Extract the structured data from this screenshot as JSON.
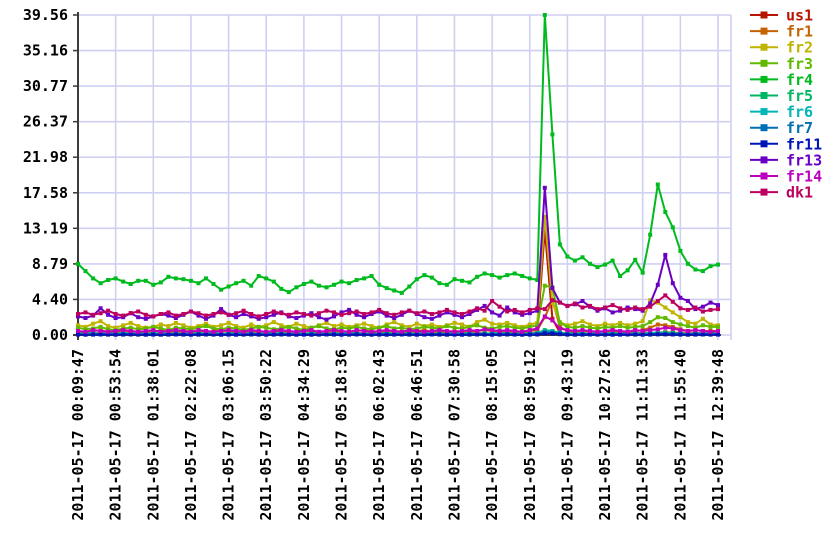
{
  "chart_data": {
    "type": "line",
    "title": "",
    "xlabel": "",
    "ylabel": "",
    "grid": true,
    "legend_position": "right",
    "y_max": 39.56,
    "y_tick_labels": [
      "39.56",
      "35.16",
      "30.77",
      "26.37",
      "21.98",
      "17.58",
      "13.19",
      "8.79",
      "4.40",
      "0.00"
    ],
    "x_tick_every_n_points": 5,
    "categories": [
      "2011-05-17 00:09:47",
      "2011-05-17 00:53:54",
      "2011-05-17 01:38:01",
      "2011-05-17 02:22:08",
      "2011-05-17 03:06:15",
      "2011-05-17 03:50:22",
      "2011-05-17 04:34:29",
      "2011-05-17 05:18:36",
      "2011-05-17 06:02:43",
      "2011-05-17 06:46:51",
      "2011-05-17 07:30:58",
      "2011-05-17 08:15:05",
      "2011-05-17 08:59:12",
      "2011-05-17 09:43:19",
      "2011-05-17 10:27:26",
      "2011-05-17 11:11:33",
      "2011-05-17 11:55:40",
      "2011-05-17 12:39:48"
    ],
    "colors": {
      "grid": "#cfcff2",
      "axis": "#3c3c3c",
      "text": "#000000",
      "background": "#ffffff"
    },
    "series": [
      {
        "name": "us1",
        "color": "#b81400",
        "values": [
          0.2,
          0.15,
          0.2,
          0.25,
          0.2,
          0.15,
          0.2,
          0.25,
          0.2,
          0.15,
          0.2,
          0.15,
          0.2,
          0.25,
          0.2,
          0.15,
          0.2,
          0.25,
          0.2,
          0.15,
          0.2,
          0.15,
          0.2,
          0.25,
          0.2,
          0.15,
          0.2,
          0.25,
          0.2,
          0.15,
          0.2,
          0.15,
          0.2,
          0.25,
          0.2,
          0.15,
          0.2,
          0.25,
          0.2,
          0.15,
          0.2,
          0.15,
          0.2,
          0.25,
          0.2,
          0.15,
          0.2,
          0.25,
          0.2,
          0.15,
          0.2,
          0.15,
          0.2,
          0.25,
          0.2,
          0.15,
          0.2,
          0.25,
          0.2,
          0.15,
          0.2,
          0.3,
          13.0,
          2.0,
          0.3,
          0.2,
          0.25,
          0.2,
          0.15,
          0.2,
          0.2,
          0.25,
          0.2,
          0.15,
          0.2,
          0.25,
          0.2,
          0.3,
          0.35,
          0.3,
          0.25,
          0.2,
          0.25,
          0.2,
          0.25,
          0.2
        ]
      },
      {
        "name": "fr1",
        "color": "#c66300",
        "values": [
          0.4,
          0.3,
          0.5,
          0.6,
          0.4,
          0.3,
          0.4,
          0.5,
          0.4,
          0.3,
          0.4,
          0.6,
          0.5,
          0.3,
          0.4,
          0.5,
          0.4,
          0.3,
          0.5,
          0.6,
          0.4,
          0.3,
          0.4,
          0.5,
          0.4,
          0.3,
          0.5,
          0.4,
          0.3,
          0.4,
          0.6,
          0.4,
          0.3,
          0.5,
          0.4,
          0.3,
          0.4,
          0.5,
          0.6,
          0.4,
          0.3,
          0.4,
          0.5,
          0.4,
          0.3,
          0.5,
          0.6,
          0.4,
          0.3,
          0.4,
          0.5,
          0.4,
          0.3,
          0.5,
          0.6,
          0.5,
          0.4,
          0.5,
          0.4,
          0.3,
          0.5,
          0.6,
          2.2,
          4.3,
          1.0,
          0.5,
          0.4,
          0.5,
          0.4,
          0.3,
          0.4,
          0.5,
          0.4,
          0.3,
          0.5,
          0.6,
          0.9,
          1.3,
          1.2,
          1.0,
          0.7,
          0.5,
          0.6,
          0.5,
          0.5,
          0.5
        ]
      },
      {
        "name": "fr2",
        "color": "#c0b400",
        "values": [
          1.2,
          1.0,
          1.4,
          1.7,
          1.1,
          0.9,
          1.2,
          1.5,
          1.1,
          0.9,
          1.0,
          1.3,
          1.1,
          1.5,
          1.2,
          0.9,
          1.1,
          1.4,
          1.0,
          1.2,
          1.5,
          1.1,
          0.9,
          1.3,
          1.0,
          1.2,
          1.6,
          1.2,
          1.0,
          1.4,
          1.1,
          0.9,
          1.2,
          1.5,
          1.1,
          1.3,
          1.0,
          1.2,
          1.4,
          1.1,
          0.9,
          1.3,
          1.6,
          1.2,
          1.0,
          1.4,
          1.1,
          1.3,
          1.0,
          1.2,
          1.5,
          1.3,
          1.0,
          1.6,
          1.9,
          1.4,
          1.3,
          1.5,
          1.2,
          1.0,
          1.3,
          1.5,
          14.6,
          4.0,
          1.6,
          1.2,
          1.4,
          1.7,
          1.3,
          1.1,
          1.4,
          1.2,
          1.5,
          1.2,
          1.4,
          1.7,
          4.3,
          4.0,
          3.4,
          2.8,
          2.2,
          1.6,
          1.4,
          2.0,
          1.3,
          1.2
        ]
      },
      {
        "name": "fr3",
        "color": "#62ba00",
        "values": [
          0.9,
          0.7,
          0.8,
          1.0,
          0.7,
          0.6,
          0.8,
          0.9,
          0.7,
          0.8,
          1.0,
          0.8,
          0.6,
          0.9,
          0.8,
          0.7,
          0.9,
          1.1,
          0.8,
          0.7,
          0.9,
          0.8,
          0.6,
          0.8,
          1.0,
          0.9,
          0.7,
          0.8,
          1.0,
          0.8,
          0.6,
          0.9,
          1.1,
          0.8,
          0.7,
          0.9,
          0.8,
          1.0,
          0.8,
          0.7,
          0.9,
          1.1,
          0.8,
          0.9,
          0.7,
          0.8,
          1.0,
          0.9,
          0.8,
          1.1,
          0.9,
          0.8,
          1.0,
          1.2,
          0.9,
          0.8,
          1.0,
          1.1,
          0.9,
          0.8,
          1.0,
          1.2,
          6.1,
          5.9,
          1.5,
          1.0,
          0.9,
          1.1,
          0.9,
          0.8,
          1.0,
          0.9,
          1.1,
          0.9,
          1.0,
          1.1,
          1.6,
          2.2,
          2.1,
          1.6,
          1.3,
          1.1,
          0.9,
          1.2,
          1.0,
          1.0
        ]
      },
      {
        "name": "fr4",
        "color": "#00bb1e",
        "values": [
          8.79,
          7.9,
          7.0,
          6.4,
          6.8,
          7.0,
          6.6,
          6.3,
          6.7,
          6.7,
          6.2,
          6.5,
          7.2,
          7.0,
          6.9,
          6.7,
          6.4,
          7.0,
          6.3,
          5.6,
          6.0,
          6.4,
          6.7,
          6.1,
          7.3,
          7.0,
          6.6,
          5.7,
          5.3,
          5.9,
          6.3,
          6.6,
          6.1,
          5.9,
          6.2,
          6.6,
          6.4,
          6.8,
          7.0,
          7.3,
          6.2,
          5.8,
          5.5,
          5.2,
          6.0,
          6.9,
          7.4,
          7.1,
          6.4,
          6.2,
          6.9,
          6.7,
          6.5,
          7.2,
          7.6,
          7.4,
          7.1,
          7.4,
          7.6,
          7.3,
          7.0,
          6.8,
          39.56,
          24.8,
          11.2,
          9.7,
          9.2,
          9.6,
          8.8,
          8.4,
          8.7,
          9.2,
          7.3,
          8.0,
          9.3,
          7.7,
          12.4,
          18.6,
          15.2,
          13.3,
          10.4,
          8.8,
          8.1,
          7.9,
          8.5,
          8.7
        ]
      },
      {
        "name": "fr5",
        "color": "#00b763",
        "values": [
          0.2,
          0.25,
          0.2,
          0.15,
          0.2,
          0.2,
          0.25,
          0.2,
          0.15,
          0.2,
          0.2,
          0.25,
          0.2,
          0.15,
          0.2,
          0.2,
          0.25,
          0.2,
          0.15,
          0.2,
          0.2,
          0.25,
          0.2,
          0.15,
          0.2,
          0.2,
          0.25,
          0.2,
          0.15,
          0.2,
          0.2,
          0.25,
          0.2,
          0.15,
          0.2,
          0.2,
          0.25,
          0.2,
          0.15,
          0.2,
          0.2,
          0.25,
          0.2,
          0.15,
          0.2,
          0.2,
          0.25,
          0.2,
          0.15,
          0.2,
          0.2,
          0.25,
          0.2,
          0.15,
          0.2,
          0.2,
          0.25,
          0.2,
          0.15,
          0.2,
          0.2,
          0.25,
          0.6,
          0.5,
          0.3,
          0.2,
          0.25,
          0.2,
          0.15,
          0.2,
          0.2,
          0.25,
          0.2,
          0.15,
          0.2,
          0.2,
          0.25,
          0.3,
          0.3,
          0.25,
          0.2,
          0.15,
          0.2,
          0.25,
          0.2,
          0.2
        ]
      },
      {
        "name": "fr6",
        "color": "#00b6b6",
        "values": [
          0.15,
          0.1,
          0.15,
          0.2,
          0.15,
          0.1,
          0.15,
          0.2,
          0.15,
          0.1,
          0.15,
          0.1,
          0.15,
          0.2,
          0.15,
          0.1,
          0.15,
          0.2,
          0.15,
          0.1,
          0.15,
          0.1,
          0.15,
          0.2,
          0.15,
          0.1,
          0.15,
          0.2,
          0.15,
          0.1,
          0.15,
          0.1,
          0.15,
          0.2,
          0.15,
          0.1,
          0.15,
          0.2,
          0.15,
          0.1,
          0.15,
          0.1,
          0.15,
          0.2,
          0.15,
          0.1,
          0.15,
          0.2,
          0.15,
          0.1,
          0.15,
          0.1,
          0.15,
          0.2,
          0.15,
          0.1,
          0.15,
          0.2,
          0.15,
          0.1,
          0.15,
          0.2,
          0.45,
          0.4,
          0.25,
          0.15,
          0.1,
          0.15,
          0.2,
          0.15,
          0.15,
          0.1,
          0.15,
          0.2,
          0.15,
          0.1,
          0.15,
          0.2,
          0.2,
          0.15,
          0.15,
          0.1,
          0.15,
          0.2,
          0.15,
          0.15
        ]
      },
      {
        "name": "fr7",
        "color": "#0070b6",
        "values": [
          0.1,
          0.08,
          0.1,
          0.12,
          0.1,
          0.08,
          0.1,
          0.12,
          0.1,
          0.08,
          0.1,
          0.08,
          0.1,
          0.12,
          0.1,
          0.08,
          0.1,
          0.12,
          0.1,
          0.08,
          0.1,
          0.08,
          0.1,
          0.12,
          0.1,
          0.08,
          0.1,
          0.12,
          0.1,
          0.08,
          0.1,
          0.08,
          0.1,
          0.12,
          0.1,
          0.08,
          0.1,
          0.12,
          0.1,
          0.08,
          0.1,
          0.08,
          0.1,
          0.12,
          0.1,
          0.08,
          0.1,
          0.12,
          0.1,
          0.08,
          0.1,
          0.08,
          0.1,
          0.12,
          0.1,
          0.08,
          0.1,
          0.12,
          0.1,
          0.08,
          0.1,
          0.12,
          0.35,
          0.3,
          0.2,
          0.1,
          0.08,
          0.1,
          0.12,
          0.1,
          0.1,
          0.08,
          0.1,
          0.12,
          0.1,
          0.08,
          0.1,
          0.15,
          0.15,
          0.12,
          0.1,
          0.08,
          0.1,
          0.12,
          0.1,
          0.1
        ]
      },
      {
        "name": "fr11",
        "color": "#0015b8",
        "values": [
          0.05,
          0.04,
          0.05,
          0.06,
          0.05,
          0.04,
          0.05,
          0.06,
          0.05,
          0.04,
          0.05,
          0.04,
          0.05,
          0.06,
          0.05,
          0.04,
          0.05,
          0.06,
          0.05,
          0.04,
          0.05,
          0.04,
          0.05,
          0.06,
          0.05,
          0.04,
          0.05,
          0.06,
          0.05,
          0.04,
          0.05,
          0.04,
          0.05,
          0.06,
          0.05,
          0.04,
          0.05,
          0.06,
          0.05,
          0.04,
          0.05,
          0.04,
          0.05,
          0.06,
          0.05,
          0.04,
          0.05,
          0.06,
          0.05,
          0.04,
          0.05,
          0.04,
          0.05,
          0.06,
          0.05,
          0.04,
          0.05,
          0.06,
          0.05,
          0.04,
          0.05,
          0.06,
          0.2,
          0.18,
          0.1,
          0.05,
          0.04,
          0.05,
          0.06,
          0.05,
          0.05,
          0.04,
          0.05,
          0.06,
          0.05,
          0.04,
          0.05,
          0.08,
          0.08,
          0.06,
          0.05,
          0.04,
          0.05,
          0.06,
          0.05,
          0.05
        ]
      },
      {
        "name": "fr13",
        "color": "#6a00c4",
        "values": [
          2.3,
          2.1,
          2.4,
          3.3,
          2.5,
          2.1,
          2.2,
          2.7,
          2.2,
          2.0,
          2.3,
          2.6,
          2.4,
          2.1,
          2.5,
          2.9,
          2.4,
          2.0,
          2.4,
          3.2,
          2.5,
          2.2,
          2.6,
          2.3,
          2.0,
          2.2,
          2.5,
          2.8,
          2.3,
          2.1,
          2.4,
          2.7,
          2.2,
          1.9,
          2.3,
          2.8,
          3.1,
          2.5,
          2.2,
          2.6,
          2.9,
          2.4,
          2.1,
          2.5,
          3.0,
          2.6,
          2.2,
          2.0,
          2.4,
          2.8,
          2.5,
          2.2,
          2.6,
          3.1,
          3.6,
          2.8,
          2.4,
          3.4,
          2.8,
          2.5,
          2.7,
          3.0,
          18.2,
          5.8,
          4.0,
          3.6,
          3.8,
          4.2,
          3.5,
          3.0,
          3.3,
          2.8,
          3.0,
          3.4,
          3.2,
          3.0,
          3.9,
          6.2,
          9.9,
          6.4,
          4.6,
          4.2,
          3.2,
          3.5,
          4.0,
          3.7
        ]
      },
      {
        "name": "fr14",
        "color": "#bd00bd",
        "values": [
          0.5,
          0.4,
          0.6,
          0.5,
          0.4,
          0.5,
          0.6,
          0.5,
          0.4,
          0.5,
          0.6,
          0.4,
          0.5,
          0.6,
          0.5,
          0.4,
          0.6,
          0.5,
          0.4,
          0.5,
          0.6,
          0.5,
          0.4,
          0.6,
          0.5,
          0.4,
          0.5,
          0.6,
          0.5,
          0.4,
          0.5,
          0.6,
          0.4,
          0.5,
          0.6,
          0.5,
          0.4,
          0.6,
          0.5,
          0.4,
          0.5,
          0.6,
          0.5,
          0.4,
          0.6,
          0.5,
          0.4,
          0.5,
          0.6,
          0.5,
          0.4,
          0.5,
          0.6,
          0.5,
          0.7,
          0.6,
          0.5,
          0.6,
          0.5,
          0.4,
          0.6,
          0.8,
          2.3,
          1.8,
          0.8,
          0.6,
          0.5,
          0.6,
          0.5,
          0.4,
          0.5,
          0.6,
          0.5,
          0.4,
          0.6,
          0.5,
          0.6,
          0.7,
          0.9,
          0.8,
          0.6,
          0.5,
          0.6,
          0.5,
          0.4,
          0.5
        ]
      },
      {
        "name": "dk1",
        "color": "#bd005f",
        "values": [
          2.6,
          2.8,
          2.5,
          2.7,
          3.0,
          2.6,
          2.4,
          2.7,
          2.9,
          2.5,
          2.3,
          2.6,
          2.8,
          2.4,
          2.6,
          2.9,
          2.7,
          2.4,
          2.6,
          2.8,
          2.5,
          2.7,
          3.0,
          2.6,
          2.3,
          2.6,
          2.9,
          2.7,
          2.5,
          2.8,
          2.6,
          2.4,
          2.7,
          3.0,
          2.8,
          2.5,
          2.7,
          2.9,
          2.6,
          2.8,
          3.1,
          2.7,
          2.5,
          2.8,
          3.0,
          2.7,
          2.9,
          2.6,
          2.8,
          3.1,
          2.8,
          2.6,
          2.9,
          3.3,
          3.0,
          4.2,
          3.5,
          2.9,
          3.1,
          2.8,
          3.1,
          3.3,
          3.2,
          4.3,
          4.0,
          3.6,
          3.9,
          3.4,
          3.6,
          3.2,
          3.4,
          3.7,
          3.3,
          3.1,
          3.4,
          3.2,
          3.5,
          4.2,
          4.9,
          4.1,
          3.3,
          3.1,
          3.4,
          2.9,
          3.1,
          3.2
        ]
      }
    ]
  }
}
